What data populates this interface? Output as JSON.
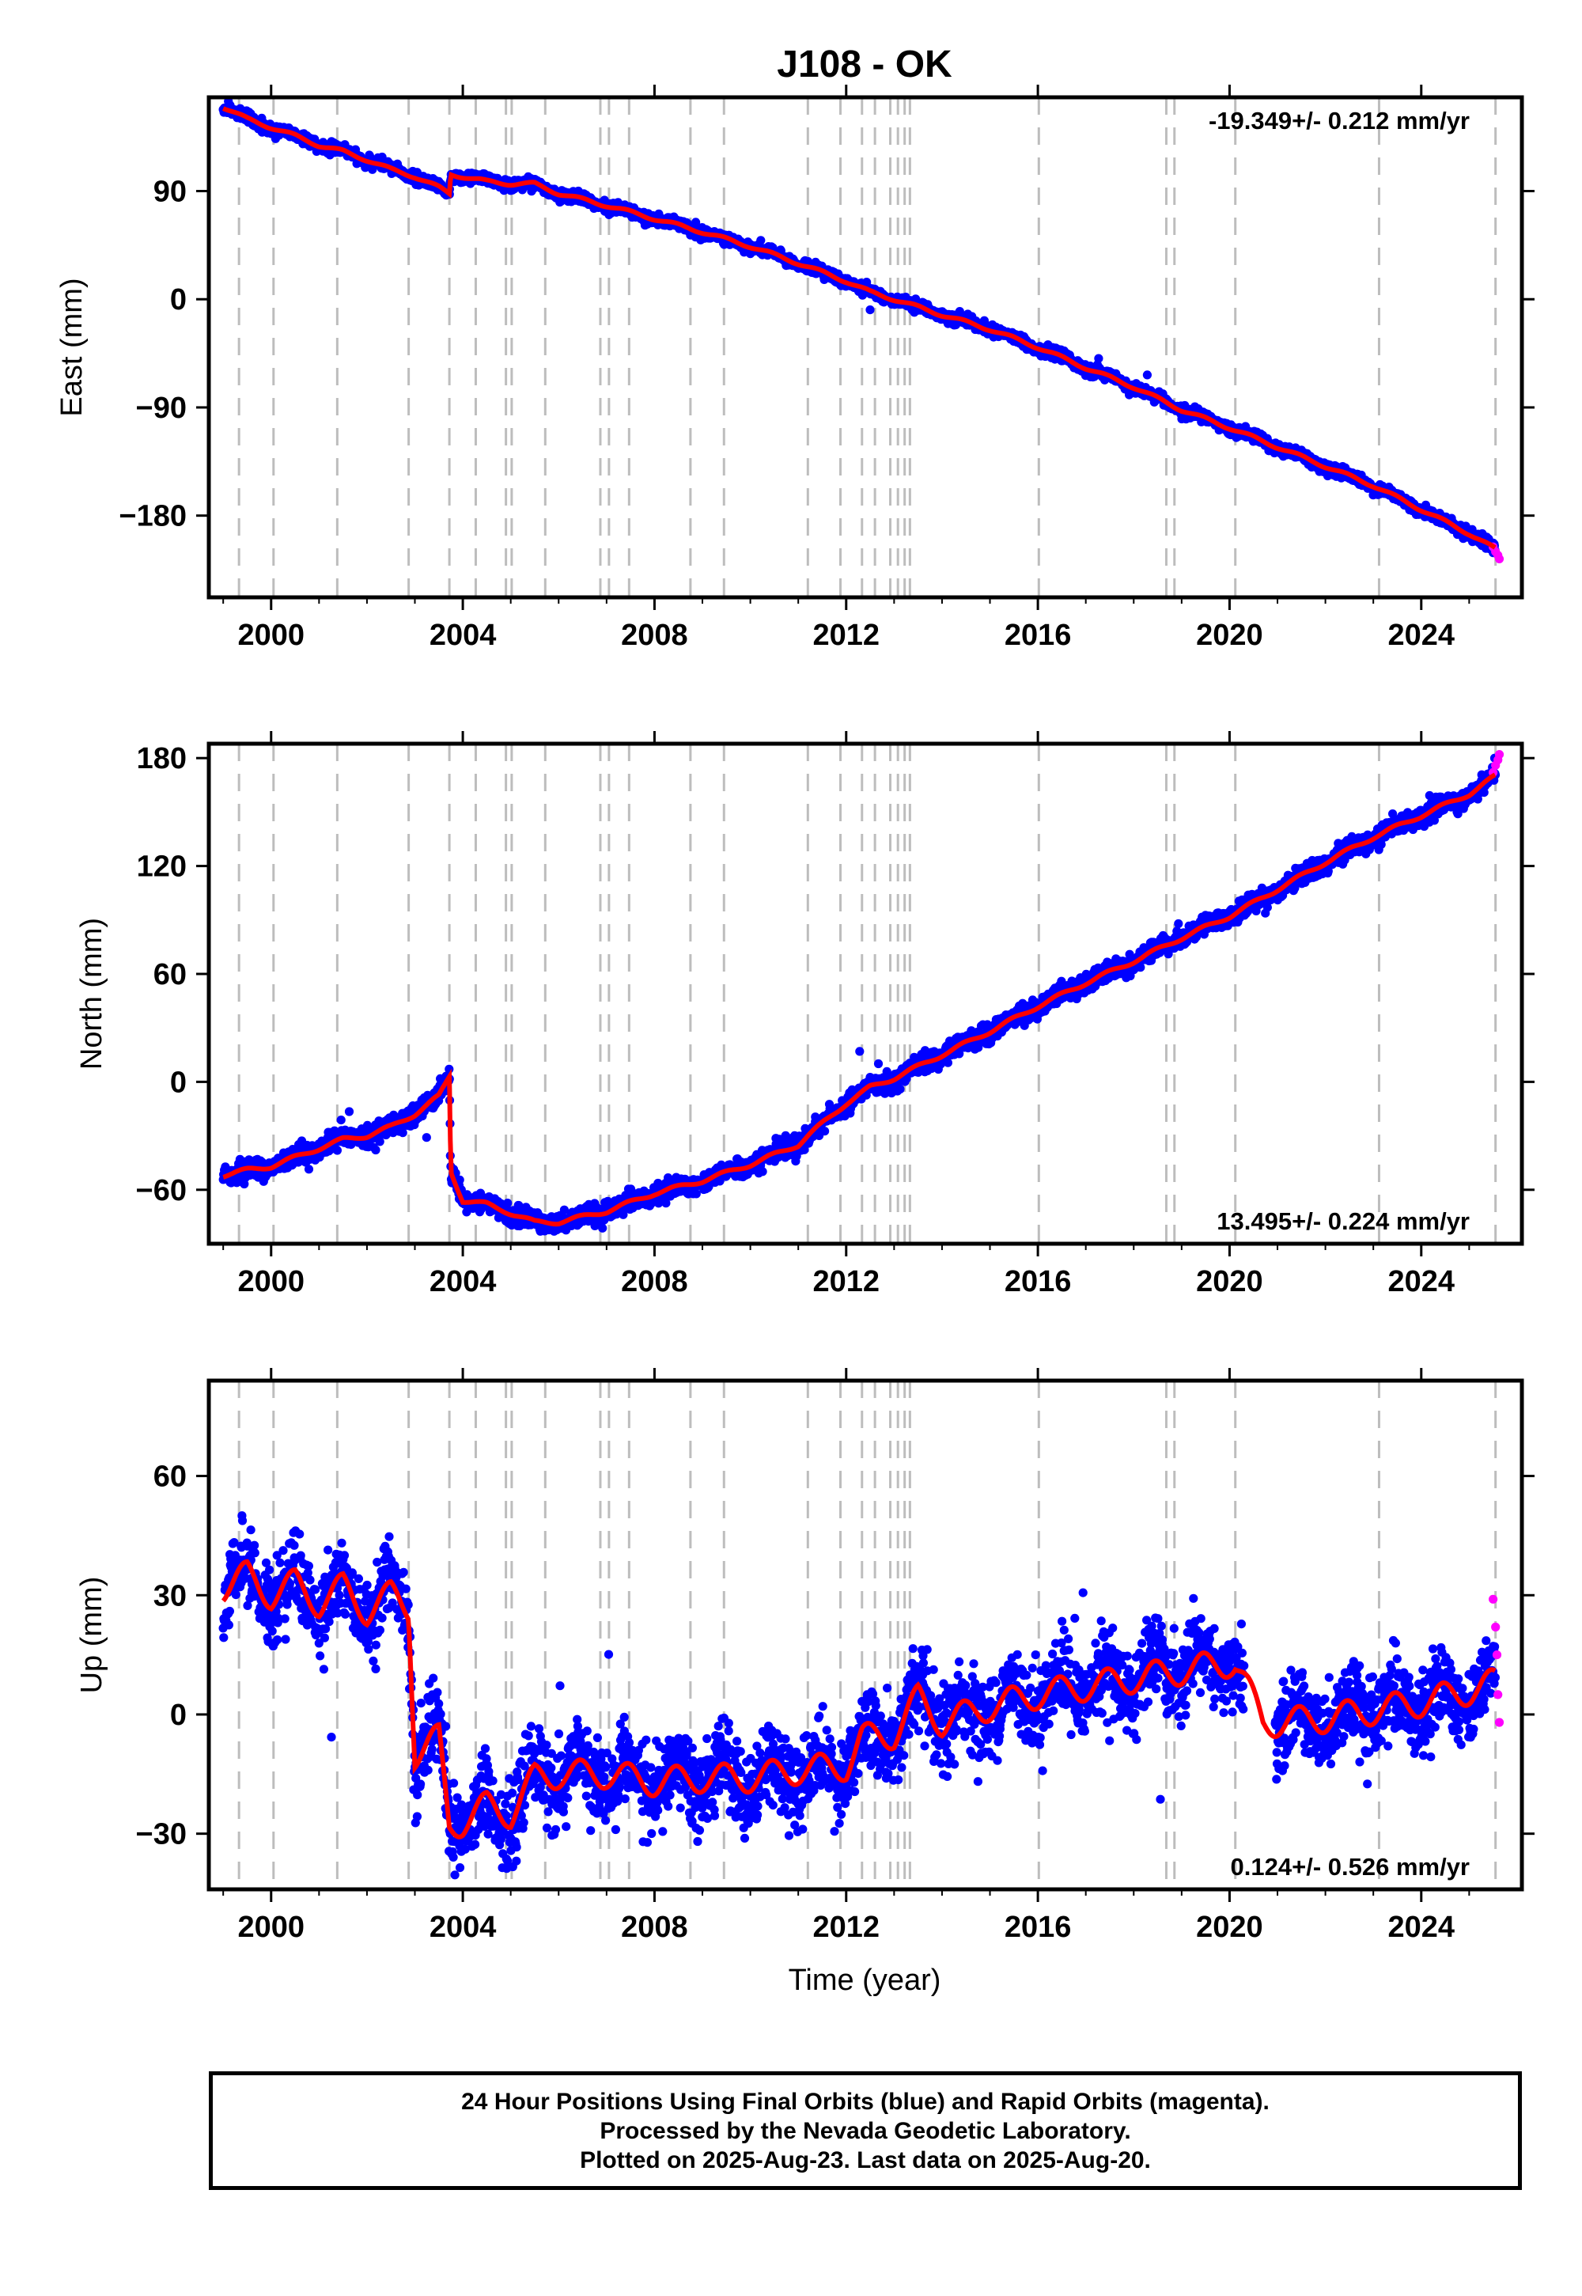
{
  "title": "J108 - OK",
  "xlabel": "Time (year)",
  "x_ticks": [
    "2000",
    "2004",
    "2008",
    "2012",
    "2016",
    "2020",
    "2024"
  ],
  "colors": {
    "final_orbits": "#0000ff",
    "rapid_orbits": "#ff00ff",
    "model": "#ff0000",
    "event_lines": "#bdbdbd",
    "frame": "#000000"
  },
  "event_lines_x": [
    1999.33,
    2000.05,
    2001.38,
    2002.87,
    2003.72,
    2004.27,
    2004.9,
    2005.02,
    2005.72,
    2006.87,
    2007.05,
    2007.47,
    2008.75,
    2009.45,
    2011.2,
    2011.88,
    2012.33,
    2012.6,
    2012.92,
    2013.08,
    2013.22,
    2013.33,
    2016.02,
    2018.68,
    2018.85,
    2020.12,
    2023.12,
    2025.55
  ],
  "panels": [
    {
      "ylabel": "East (mm)",
      "rate_text": "-19.349+/- 0.212 mm/yr",
      "rate_position": "top-right",
      "y_ticks": [
        "90",
        "0",
        "−90",
        "−180"
      ]
    },
    {
      "ylabel": "North (mm)",
      "rate_text": "13.495+/- 0.224 mm/yr",
      "rate_position": "bottom-right",
      "y_ticks": [
        "180",
        "120",
        "60",
        "0",
        "−60"
      ]
    },
    {
      "ylabel": "Up (mm)",
      "rate_text": "0.124+/- 0.526 mm/yr",
      "rate_position": "bottom-right",
      "y_ticks": [
        "60",
        "30",
        "0",
        "−30"
      ]
    }
  ],
  "footer": {
    "line1": "24 Hour Positions Using Final Orbits (blue) and Rapid Orbits (magenta).",
    "line2": "Processed by the Nevada Geodetic Laboratory.",
    "line3": "Plotted on 2025-Aug-23. Last data on 2025-Aug-20."
  },
  "chart_data": [
    {
      "type": "scatter",
      "title": "J108 - OK",
      "xlabel": "",
      "ylabel": "East (mm)",
      "xlim": [
        1998.7,
        2026.1
      ],
      "ylim": [
        -248,
        168
      ],
      "grid": false,
      "rate": "-19.349+/- 0.212 mm/yr",
      "series": [
        {
          "kind": "final-orbit-daily-positions",
          "x": [
            1999.0,
            1999.5,
            2000.0,
            2000.5,
            2001.0,
            2001.5,
            2002.0,
            2002.5,
            2003.0,
            2003.5,
            2003.72,
            2003.75,
            2004.0,
            2004.5,
            2005.0,
            2005.5,
            2006.0,
            2007.0,
            2008.0,
            2009.0,
            2010.0,
            2011.0,
            2012.0,
            2012.5,
            2013.0,
            2014.0,
            2015.0,
            2016.0,
            2017.0,
            2018.0,
            2019.0,
            2020.0,
            2021.0,
            2022.0,
            2023.0,
            2024.0,
            2025.0,
            2025.55
          ],
          "y": [
            160,
            150,
            143,
            136,
            128,
            123,
            116,
            108,
            102,
            93,
            88,
            104,
            102,
            98,
            96,
            96,
            88,
            78,
            67,
            56,
            44,
            30,
            15,
            6,
            0,
            -13,
            -25,
            -40,
            -57,
            -73,
            -92,
            -107,
            -123,
            -139,
            -155,
            -175,
            -195,
            -208
          ]
        },
        {
          "kind": "rapid-orbit-daily-positions",
          "x": [
            2025.5,
            2025.55,
            2025.6,
            2025.63
          ],
          "y": [
            -206,
            -210,
            -213,
            -216
          ]
        }
      ]
    },
    {
      "type": "scatter",
      "title": "",
      "xlabel": "",
      "ylabel": "North (mm)",
      "xlim": [
        1998.7,
        2026.1
      ],
      "ylim": [
        -90,
        188
      ],
      "grid": false,
      "rate": "13.495+/- 0.224 mm/yr",
      "series": [
        {
          "kind": "final-orbit-daily-positions",
          "x": [
            1999.0,
            1999.5,
            2000.0,
            2000.5,
            2001.0,
            2001.5,
            2002.0,
            2002.5,
            2003.0,
            2003.5,
            2003.72,
            2003.75,
            2004.0,
            2004.5,
            2005.0,
            2005.5,
            2006.0,
            2007.0,
            2008.0,
            2009.0,
            2010.0,
            2011.0,
            2011.2,
            2012.0,
            2012.5,
            2013.0,
            2014.0,
            2015.0,
            2016.0,
            2017.0,
            2018.0,
            2019.0,
            2020.0,
            2021.0,
            2022.0,
            2023.0,
            2024.0,
            2025.0,
            2025.55
          ],
          "y": [
            -52,
            -49,
            -47,
            -42,
            -37,
            -32,
            -30,
            -25,
            -18,
            -8,
            3,
            -50,
            -66,
            -68,
            -73,
            -78,
            -78,
            -72,
            -62,
            -55,
            -46,
            -35,
            -30,
            -12,
            -3,
            2,
            15,
            28,
            42,
            55,
            67,
            80,
            92,
            107,
            122,
            136,
            148,
            160,
            170
          ]
        },
        {
          "kind": "rapid-orbit-daily-positions",
          "x": [
            2025.5,
            2025.55,
            2025.6,
            2025.63
          ],
          "y": [
            172,
            176,
            179,
            182
          ]
        }
      ]
    },
    {
      "type": "scatter",
      "title": "",
      "xlabel": "Time (year)",
      "ylabel": "Up (mm)",
      "xlim": [
        1998.7,
        2026.1
      ],
      "ylim": [
        -44,
        84
      ],
      "grid": false,
      "rate": "0.124+/- 0.526 mm/yr",
      "series": [
        {
          "kind": "final-orbit-daily-positions",
          "x": [
            1999.0,
            1999.5,
            2000.0,
            2000.5,
            2001.0,
            2001.5,
            2002.0,
            2002.5,
            2002.87,
            2003.0,
            2003.5,
            2003.72,
            2004.0,
            2004.5,
            2005.0,
            2005.5,
            2006.0,
            2007.0,
            2008.0,
            2009.0,
            2010.0,
            2011.0,
            2012.0,
            2012.33,
            2013.0,
            2013.5,
            2014.0,
            2015.0,
            2016.0,
            2017.0,
            2018.0,
            2019.0,
            2020.0,
            2020.12,
            2020.7,
            2021.0,
            2022.0,
            2023.0,
            2024.0,
            2025.0,
            2025.55
          ],
          "y": [
            32,
            35,
            30,
            33,
            28,
            32,
            26,
            30,
            27,
            -10,
            -6,
            -28,
            -27,
            -23,
            -25,
            -16,
            -15,
            -15,
            -17,
            -16,
            -16,
            -14,
            -13,
            -6,
            -5,
            4,
            -2,
            2,
            5,
            7,
            9,
            11,
            13,
            13,
            -2,
            -2,
            -1,
            1,
            3,
            6,
            8
          ]
        },
        {
          "kind": "rapid-orbit-daily-positions",
          "x": [
            2025.5,
            2025.55,
            2025.58,
            2025.6,
            2025.63
          ],
          "y": [
            29,
            22,
            15,
            5,
            -2
          ]
        }
      ]
    }
  ]
}
